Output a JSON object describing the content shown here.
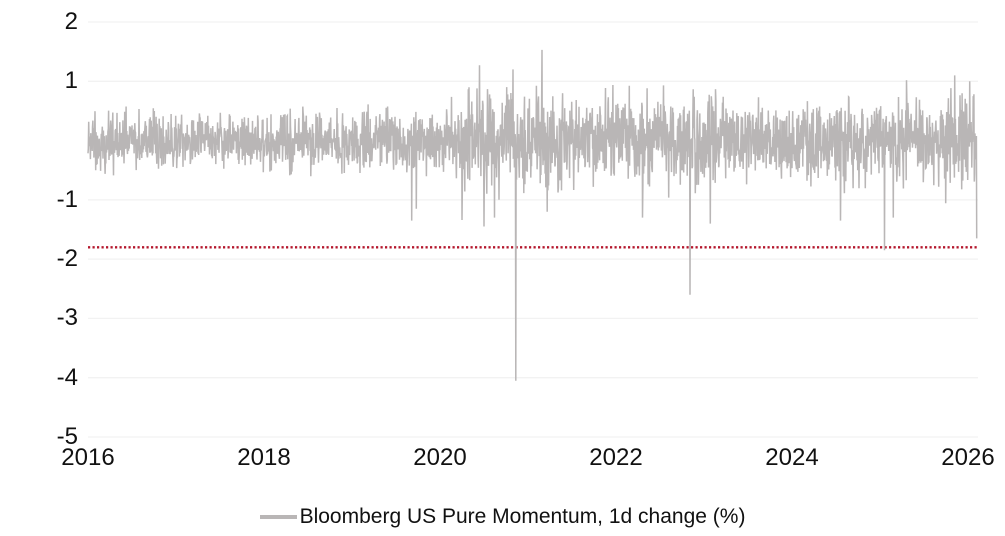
{
  "chart": {
    "legend": {
      "label": "Bloomberg US Pure Momentum, 1d change (%)"
    },
    "colors": {
      "series": "#b9b6b6",
      "threshold": "#b4172d",
      "gridline": "#f2f2f2",
      "text": "#111111",
      "background": "#ffffff"
    },
    "y_axis": {
      "tick_labels": [
        "2",
        "1",
        "-1",
        "-2",
        "-3",
        "-4",
        "-5"
      ],
      "tick_values": [
        2,
        1,
        -1,
        -2,
        -3,
        -4,
        -5
      ],
      "max": 2,
      "min": -5
    },
    "x_axis": {
      "tick_labels": [
        "2016",
        "2018",
        "2020",
        "2022",
        "2024",
        "2026"
      ],
      "tick_values": [
        2016,
        2018,
        2020,
        2022,
        2024,
        2026
      ]
    }
  },
  "chart_data": {
    "type": "line",
    "series": [
      {
        "name": "Bloomberg US Pure Momentum, 1d change (%)",
        "color": "#b9b6b6"
      }
    ],
    "x_range": [
      2016.0,
      2026.1
    ],
    "ylim": [
      -5,
      2
    ],
    "grid": "horizontal",
    "legend_position": "bottom-center",
    "points_per_year": 252,
    "seed": 20161,
    "threshold_line": {
      "value": -1.8,
      "color": "#b4172d",
      "style": "dotted"
    },
    "volatility_profile": [
      {
        "year": 2016.0,
        "amp": 0.55
      },
      {
        "year": 2016.8,
        "amp": 0.45
      },
      {
        "year": 2017.5,
        "amp": 0.4
      },
      {
        "year": 2018.1,
        "amp": 0.52
      },
      {
        "year": 2019.0,
        "amp": 0.48
      },
      {
        "year": 2019.6,
        "amp": 0.52
      },
      {
        "year": 2020.1,
        "amp": 0.5
      },
      {
        "year": 2020.35,
        "amp": 0.78
      },
      {
        "year": 2020.6,
        "amp": 0.85
      },
      {
        "year": 2021.2,
        "amp": 0.8
      },
      {
        "year": 2021.6,
        "amp": 0.65
      },
      {
        "year": 2022.0,
        "amp": 0.7
      },
      {
        "year": 2022.9,
        "amp": 0.75
      },
      {
        "year": 2023.3,
        "amp": 0.6
      },
      {
        "year": 2024.2,
        "amp": 0.62
      },
      {
        "year": 2024.8,
        "amp": 0.7
      },
      {
        "year": 2025.3,
        "amp": 0.72
      },
      {
        "year": 2026.1,
        "amp": 0.72
      }
    ],
    "notable_points": [
      {
        "year": 2019.68,
        "value": -1.35
      },
      {
        "year": 2019.73,
        "value": -1.15
      },
      {
        "year": 2020.25,
        "value": -1.34
      },
      {
        "year": 2020.45,
        "value": 1.27
      },
      {
        "year": 2020.5,
        "value": -1.45
      },
      {
        "year": 2020.62,
        "value": -1.3
      },
      {
        "year": 2020.83,
        "value": 1.2
      },
      {
        "year": 2020.86,
        "value": -4.05
      },
      {
        "year": 2021.16,
        "value": 1.53
      },
      {
        "year": 2021.22,
        "value": -1.2
      },
      {
        "year": 2022.3,
        "value": -1.3
      },
      {
        "year": 2022.84,
        "value": -2.6
      },
      {
        "year": 2023.07,
        "value": -1.4
      },
      {
        "year": 2024.55,
        "value": -1.35
      },
      {
        "year": 2025.05,
        "value": -1.85
      },
      {
        "year": 2025.15,
        "value": -1.3
      },
      {
        "year": 2025.85,
        "value": 1.1
      },
      {
        "year": 2026.02,
        "value": 1.0
      },
      {
        "year": 2026.1,
        "value": -1.65
      }
    ]
  }
}
